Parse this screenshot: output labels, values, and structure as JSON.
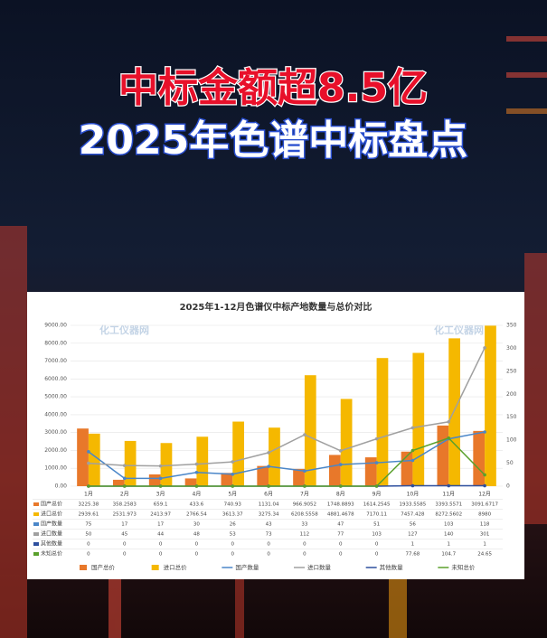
{
  "header": {
    "title": "中标金额超8.5亿",
    "subtitle": "2025年色谱中标盘点"
  },
  "chart_data": {
    "type": "combo",
    "title": "2025年1-12月色谱仪中标产地数量与总价对比",
    "watermark": "化工仪器网",
    "categories": [
      "1月",
      "2月",
      "3月",
      "4月",
      "5月",
      "6月",
      "7月",
      "8月",
      "9月",
      "10月",
      "11月",
      "12月"
    ],
    "ylim": [
      0,
      9000
    ],
    "yticks": [
      {
        "value": 0,
        "label": "0.00"
      },
      {
        "value": 1000,
        "label": "1000.00"
      },
      {
        "value": 2000,
        "label": "2000.00"
      },
      {
        "value": 3000,
        "label": "3000.00"
      },
      {
        "value": 4000,
        "label": "4000.00"
      },
      {
        "value": 5000,
        "label": "5000.00"
      },
      {
        "value": 6000,
        "label": "6000.00"
      },
      {
        "value": 7000,
        "label": "7000.00"
      },
      {
        "value": 8000,
        "label": "8000.00"
      },
      {
        "value": 9000,
        "label": "9000.00"
      }
    ],
    "y2lim": [
      0,
      350
    ],
    "y2ticks": [
      0,
      50,
      100,
      150,
      200,
      250,
      300,
      350
    ],
    "grid": true,
    "series": [
      {
        "name": "国产总价",
        "type": "bar",
        "color": "#e8782a",
        "values": [
          3225.38,
          358.2583,
          659.1,
          433.6,
          740.93,
          1131.04,
          966.9052,
          1748.8893,
          1614.2545,
          1933.5585,
          3393.5571,
          3091.6717
        ]
      },
      {
        "name": "进口总价",
        "type": "bar",
        "color": "#f5b800",
        "values": [
          2939.61,
          2531.973,
          2413.97,
          2766.54,
          3613.37,
          3275.34,
          6208.5558,
          4881.4678,
          7170.11,
          7457.428,
          8272.5602,
          8980
        ]
      },
      {
        "name": "国产数量",
        "type": "line",
        "axis": "y2",
        "color": "#4a86c8",
        "values": [
          75,
          17,
          17,
          30,
          26,
          43,
          33,
          47,
          51,
          56,
          103,
          118
        ]
      },
      {
        "name": "进口数量",
        "type": "line",
        "axis": "y2",
        "color": "#a0a0a0",
        "values": [
          50,
          45,
          44,
          48,
          53,
          73,
          112,
          77,
          103,
          127,
          140,
          301
        ]
      },
      {
        "name": "其他数量",
        "type": "line",
        "axis": "y2",
        "color": "#2d4f9e",
        "values": [
          0,
          0,
          0,
          0,
          0,
          0,
          0,
          0,
          0,
          1,
          1,
          1
        ]
      },
      {
        "name": "未知总价",
        "type": "line",
        "axis": "y2",
        "color": "#5aa02c",
        "values": [
          0,
          0,
          0,
          0,
          0,
          0,
          0,
          0,
          0,
          77.68,
          104.7,
          24.65
        ]
      }
    ]
  }
}
